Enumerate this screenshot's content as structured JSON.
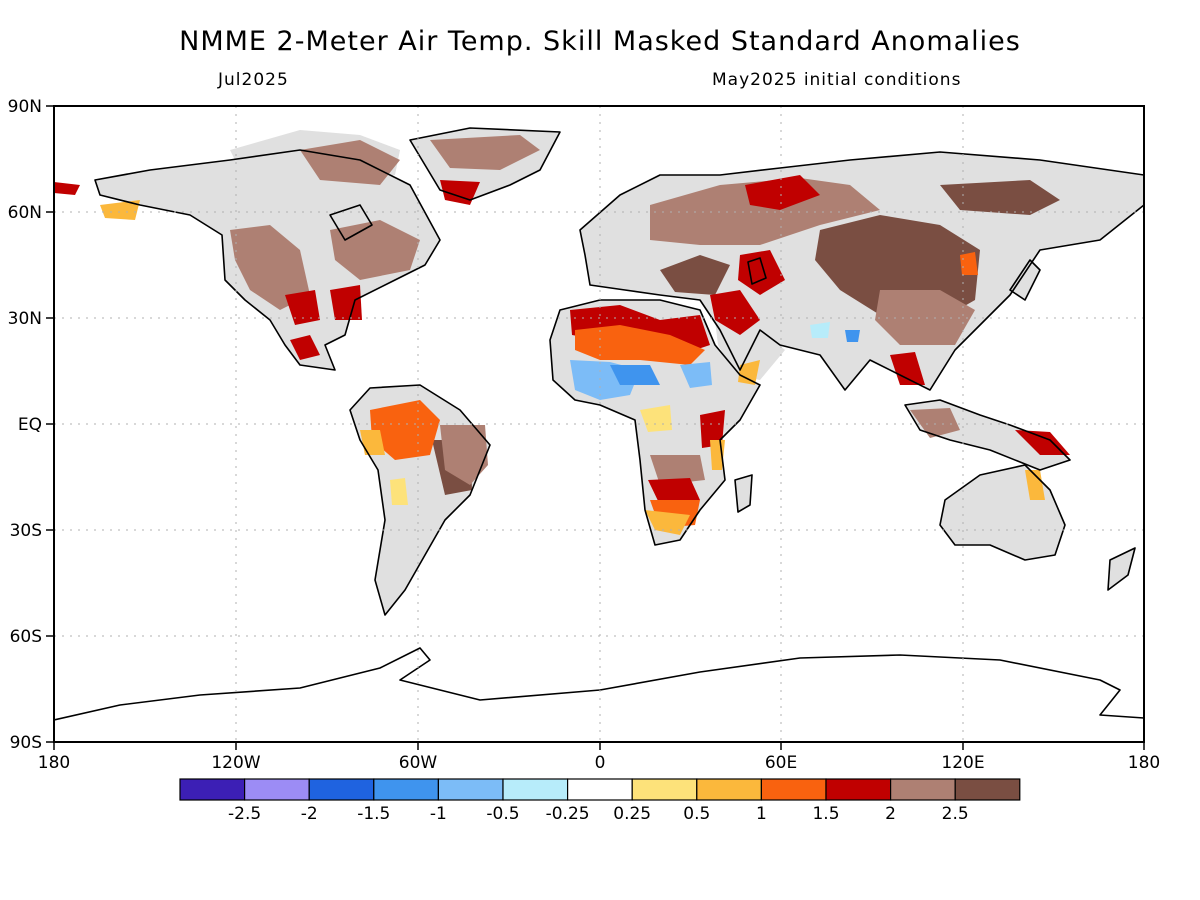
{
  "header": {
    "title": "NMME 2-Meter Air Temp. Skill Masked Standard Anomalies",
    "valid_month": "Jul2025",
    "init_note": "May2025 initial conditions"
  },
  "axes": {
    "lat_ticks": [
      "90N",
      "60N",
      "30N",
      "EQ",
      "30S",
      "60S",
      "90S"
    ],
    "lon_ticks": [
      "180",
      "120W",
      "60W",
      "0",
      "60E",
      "120E",
      "180"
    ]
  },
  "colorbar": {
    "colors": [
      "#3c1fb5",
      "#9c8cf5",
      "#1f63e0",
      "#3f94ee",
      "#7cbcf7",
      "#b7ecfa",
      "#ffffff",
      "#fde27a",
      "#fbb83c",
      "#f9620f",
      "#c00000",
      "#ae8073",
      "#7a4e42"
    ],
    "labels": [
      "-2.5",
      "-2",
      "-1.5",
      "-1",
      "-0.5",
      "-0.25",
      "0.25",
      "0.5",
      "1",
      "1.5",
      "2",
      "2.5"
    ]
  },
  "map_colors": {
    "land_masked": "#e0e0e0",
    "ocean": "#ffffff",
    "coastline": "#000000",
    "grid": "#b0b0b0"
  }
}
